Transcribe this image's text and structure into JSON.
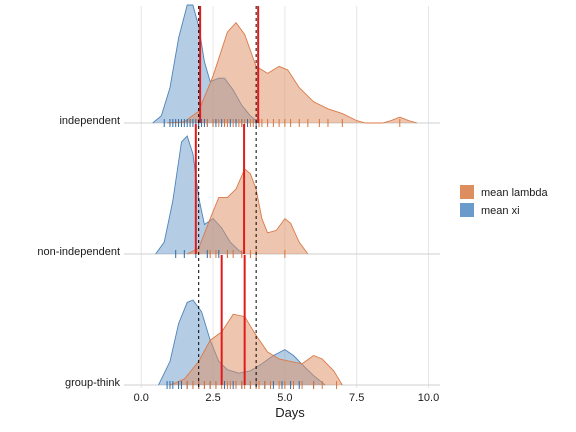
{
  "chart_data": {
    "type": "ridgeline",
    "xlabel": "Days",
    "xlim": [
      -0.6,
      10.4
    ],
    "x_ticks": [
      0.0,
      2.5,
      5.0,
      7.5,
      10.0
    ],
    "x_tick_labels": [
      "0.0",
      "2.5",
      "5.0",
      "7.5",
      "10.0"
    ],
    "grid": true,
    "legend": {
      "placement": "right",
      "entries": [
        {
          "label": "mean lambda",
          "color": "#de8d5f"
        },
        {
          "label": "mean xi",
          "color": "#6a9bcb"
        }
      ]
    },
    "colors": {
      "lambda_fill": "#de8d5f",
      "xi_fill": "#6a9bcb",
      "lambda_line": "#d97a48",
      "xi_line": "#4f84b8",
      "mean_line": "#e31a1c",
      "reference_line": "#000000"
    },
    "reference_lines": [
      2.0,
      4.0
    ],
    "groups": [
      {
        "name": "independent",
        "series": {
          "lambda": {
            "density": [
              [
                0.9,
                0
              ],
              [
                1.5,
                0.01
              ],
              [
                2.0,
                0.1
              ],
              [
                2.5,
                0.4
              ],
              [
                3.0,
                0.77
              ],
              [
                3.3,
                0.85
              ],
              [
                3.6,
                0.75
              ],
              [
                4.0,
                0.48
              ],
              [
                4.4,
                0.42
              ],
              [
                4.8,
                0.48
              ],
              [
                5.1,
                0.45
              ],
              [
                5.5,
                0.3
              ],
              [
                6.0,
                0.18
              ],
              [
                6.5,
                0.12
              ],
              [
                7.0,
                0.08
              ],
              [
                7.5,
                0.02
              ],
              [
                7.8,
                0
              ],
              [
                8.4,
                0
              ],
              [
                8.7,
                0.02
              ],
              [
                9.0,
                0.05
              ],
              [
                9.3,
                0.02
              ],
              [
                9.6,
                0
              ]
            ],
            "mean": 4.07,
            "rug": [
              2.3,
              2.5,
              2.7,
              2.9,
              3.0,
              3.2,
              3.4,
              3.5,
              3.6,
              3.8,
              3.9,
              4.1,
              4.2,
              4.4,
              4.6,
              4.8,
              5.0,
              5.2,
              5.5,
              5.8,
              6.2,
              6.5,
              7.0,
              9.0
            ]
          },
          "xi": {
            "density": [
              [
                0.4,
                0
              ],
              [
                0.7,
                0.06
              ],
              [
                1.0,
                0.3
              ],
              [
                1.3,
                0.72
              ],
              [
                1.6,
                1.0
              ],
              [
                1.8,
                1.0
              ],
              [
                2.0,
                0.82
              ],
              [
                2.2,
                0.52
              ],
              [
                2.4,
                0.35
              ],
              [
                2.7,
                0.38
              ],
              [
                2.9,
                0.38
              ],
              [
                3.2,
                0.28
              ],
              [
                3.5,
                0.15
              ],
              [
                3.8,
                0.06
              ],
              [
                4.1,
                0
              ]
            ],
            "mean": 2.05,
            "rug": [
              0.8,
              1.0,
              1.1,
              1.2,
              1.3,
              1.4,
              1.5,
              1.6,
              1.7,
              1.8,
              1.9,
              2.0,
              2.1,
              2.2,
              2.3,
              2.5,
              2.6,
              2.8,
              2.9,
              3.1,
              3.3,
              3.5,
              3.7,
              4.0
            ]
          }
        }
      },
      {
        "name": "non-independent",
        "series": {
          "lambda": {
            "density": [
              [
                1.6,
                0
              ],
              [
                2.0,
                0.05
              ],
              [
                2.4,
                0.3
              ],
              [
                2.7,
                0.48
              ],
              [
                3.0,
                0.48
              ],
              [
                3.3,
                0.55
              ],
              [
                3.6,
                0.72
              ],
              [
                3.8,
                0.68
              ],
              [
                4.0,
                0.55
              ],
              [
                4.2,
                0.3
              ],
              [
                4.4,
                0.18
              ],
              [
                4.7,
                0.2
              ],
              [
                5.0,
                0.3
              ],
              [
                5.2,
                0.26
              ],
              [
                5.5,
                0.1
              ],
              [
                5.8,
                0
              ]
            ],
            "mean": 3.58,
            "rug": [
              2.4,
              2.6,
              3.0,
              3.2,
              3.5,
              3.8,
              4.0,
              5.0
            ]
          },
          "xi": {
            "density": [
              [
                0.5,
                0
              ],
              [
                0.8,
                0.1
              ],
              [
                1.1,
                0.45
              ],
              [
                1.4,
                0.95
              ],
              [
                1.6,
                1.0
              ],
              [
                1.8,
                0.85
              ],
              [
                2.0,
                0.48
              ],
              [
                2.2,
                0.25
              ],
              [
                2.5,
                0.3
              ],
              [
                2.8,
                0.22
              ],
              [
                3.1,
                0.1
              ],
              [
                3.4,
                0.03
              ],
              [
                3.6,
                0
              ]
            ],
            "mean": 1.9,
            "rug": [
              1.2,
              1.5,
              1.9,
              2.3,
              2.7,
              3.0
            ]
          }
        }
      },
      {
        "name": "group-think",
        "series": {
          "lambda": {
            "density": [
              [
                1.0,
                0
              ],
              [
                1.5,
                0.05
              ],
              [
                2.0,
                0.2
              ],
              [
                2.4,
                0.38
              ],
              [
                2.8,
                0.45
              ],
              [
                3.2,
                0.6
              ],
              [
                3.6,
                0.58
              ],
              [
                4.0,
                0.42
              ],
              [
                4.4,
                0.28
              ],
              [
                4.8,
                0.22
              ],
              [
                5.2,
                0.2
              ],
              [
                5.6,
                0.18
              ],
              [
                6.0,
                0.25
              ],
              [
                6.3,
                0.22
              ],
              [
                6.7,
                0.12
              ],
              [
                7.0,
                0
              ]
            ],
            "mean": 3.6,
            "rug": [
              1.6,
              1.8,
              2.0,
              2.2,
              2.4,
              2.6,
              2.8,
              3.0,
              3.1,
              3.3,
              3.5,
              3.6,
              3.8,
              4.0,
              4.1,
              4.3,
              4.5,
              4.8,
              5.0,
              5.3,
              5.6,
              6.0,
              6.3,
              6.8
            ]
          },
          "xi": {
            "density": [
              [
                0.6,
                0
              ],
              [
                1.0,
                0.2
              ],
              [
                1.3,
                0.52
              ],
              [
                1.6,
                0.7
              ],
              [
                1.8,
                0.72
              ],
              [
                2.1,
                0.62
              ],
              [
                2.4,
                0.38
              ],
              [
                2.7,
                0.2
              ],
              [
                3.0,
                0.13
              ],
              [
                3.4,
                0.1
              ],
              [
                3.8,
                0.12
              ],
              [
                4.2,
                0.18
              ],
              [
                4.6,
                0.25
              ],
              [
                5.0,
                0.3
              ],
              [
                5.3,
                0.25
              ],
              [
                5.7,
                0.15
              ],
              [
                6.0,
                0.08
              ],
              [
                6.4,
                0
              ]
            ],
            "mean": 2.8,
            "rug": [
              0.9,
              1.0,
              1.1,
              1.3,
              1.4,
              1.6,
              1.8,
              2.0,
              2.2,
              2.4,
              2.6,
              2.9,
              3.2,
              3.5,
              3.8,
              4.0,
              4.3,
              4.6,
              4.9,
              5.2,
              5.5,
              6.0
            ]
          }
        }
      }
    ]
  }
}
